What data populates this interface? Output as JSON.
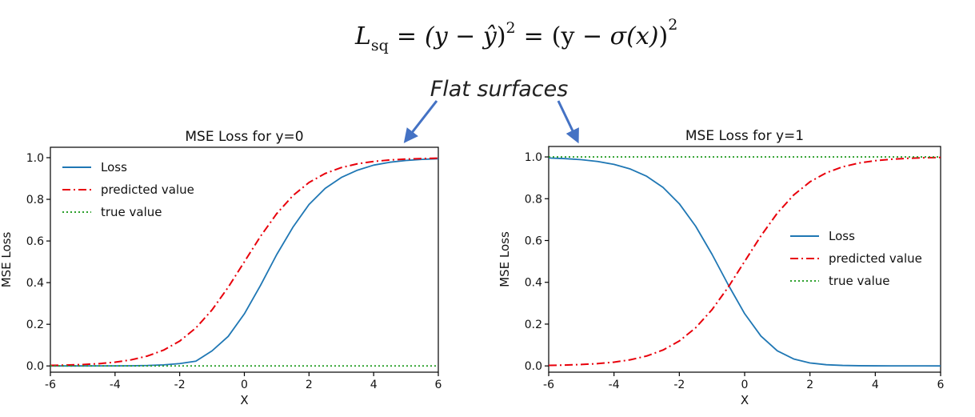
{
  "equation": {
    "lhs_base": "L",
    "lhs_sub": "sq",
    "eq1": "=",
    "mid_open": "(y − ",
    "yhat": "ŷ",
    "mid_close": ")",
    "mid_exp": "2",
    "eq2": "=",
    "rhs_open": "(",
    "rhs_y": "y",
    "rhs_minus": " − ",
    "rhs_sigma": "σ",
    "rhs_arg": "(x)",
    "rhs_close": ")",
    "rhs_exp": "2"
  },
  "annotation": {
    "text": "Flat surfaces",
    "arrow_color": "#4472C4"
  },
  "chart_data": [
    {
      "type": "line",
      "title": "MSE Loss for y=0",
      "xlabel": "X",
      "ylabel": "MSE Loss",
      "xlim": [
        -6,
        6
      ],
      "ylim": [
        -0.03,
        1.05
      ],
      "xticks": [
        -6,
        -4,
        -2,
        0,
        2,
        4,
        6
      ],
      "yticks": [
        0.0,
        0.2,
        0.4,
        0.6,
        0.8,
        1.0
      ],
      "ytick_labels": [
        "0.0",
        "0.2",
        "0.4",
        "0.6",
        "0.8",
        "1.0"
      ],
      "legend": "top-left",
      "grid": false,
      "x": [
        -6,
        -5.5,
        -5,
        -4.5,
        -4,
        -3.5,
        -3,
        -2.5,
        -2,
        -1.5,
        -1,
        -0.5,
        0,
        0.5,
        1,
        1.5,
        2,
        2.5,
        3,
        3.5,
        4,
        4.5,
        5,
        5.5,
        6
      ],
      "series": [
        {
          "name": "Loss",
          "color": "#1f77b4",
          "dash": "solid",
          "values": [
            6e-06,
            1.7e-05,
            4.5e-05,
            0.000122,
            0.000326,
            0.00085,
            0.00215,
            0.00514,
            0.01138,
            0.02288,
            0.07232,
            0.14185,
            0.25,
            0.38662,
            0.53444,
            0.66554,
            0.77526,
            0.85268,
            0.90502,
            0.94005,
            0.96421,
            0.97811,
            0.98674,
            0.99183,
            0.99504
          ]
        },
        {
          "name": "predicted value",
          "color": "#e8000b",
          "dash": "dashdot",
          "values": [
            0.00247,
            0.00407,
            0.00669,
            0.01099,
            0.01799,
            0.02931,
            0.04743,
            0.07586,
            0.1192,
            0.18243,
            0.26894,
            0.37754,
            0.5,
            0.62246,
            0.73106,
            0.81757,
            0.8808,
            0.92414,
            0.95257,
            0.97069,
            0.98201,
            0.98901,
            0.99331,
            0.99593,
            0.99753
          ]
        },
        {
          "name": "true value",
          "color": "#2ca02c",
          "dash": "dotted",
          "values": [
            0,
            0,
            0,
            0,
            0,
            0,
            0,
            0,
            0,
            0,
            0,
            0,
            0,
            0,
            0,
            0,
            0,
            0,
            0,
            0,
            0,
            0,
            0,
            0,
            0
          ]
        }
      ]
    },
    {
      "type": "line",
      "title": "MSE Loss for y=1",
      "xlabel": "X",
      "ylabel": "MSE Loss",
      "xlim": [
        -6,
        6
      ],
      "ylim": [
        -0.03,
        1.05
      ],
      "xticks": [
        -6,
        -4,
        -2,
        0,
        2,
        4,
        6
      ],
      "yticks": [
        0.0,
        0.2,
        0.4,
        0.6,
        0.8,
        1.0
      ],
      "ytick_labels": [
        "0.0",
        "0.2",
        "0.4",
        "0.6",
        "0.8",
        "1.0"
      ],
      "legend": "center-right",
      "grid": false,
      "x": [
        -6,
        -5.5,
        -5,
        -4.5,
        -4,
        -3.5,
        -3,
        -2.5,
        -2,
        -1.5,
        -1,
        -0.5,
        0,
        0.5,
        1,
        1.5,
        2,
        2.5,
        3,
        3.5,
        4,
        4.5,
        5,
        5.5,
        6
      ],
      "series": [
        {
          "name": "Loss",
          "color": "#1f77b4",
          "dash": "solid",
          "values": [
            0.99507,
            0.99188,
            0.98669,
            0.97813,
            0.96434,
            0.94224,
            0.90739,
            0.85403,
            0.77581,
            0.66842,
            0.53444,
            0.38745,
            0.25,
            0.14253,
            0.07232,
            0.03328,
            0.01421,
            0.00575,
            0.00225,
            0.00086,
            0.000324,
            0.000121,
            4.5e-05,
            1.7e-05,
            6e-06
          ]
        },
        {
          "name": "predicted value",
          "color": "#e8000b",
          "dash": "dashdot",
          "values": [
            0.00247,
            0.00407,
            0.00669,
            0.01099,
            0.01799,
            0.02931,
            0.04743,
            0.07586,
            0.1192,
            0.18243,
            0.26894,
            0.37754,
            0.5,
            0.62246,
            0.73106,
            0.81757,
            0.8808,
            0.92414,
            0.95257,
            0.97069,
            0.98201,
            0.98901,
            0.99331,
            0.99593,
            0.99753
          ]
        },
        {
          "name": "true value",
          "color": "#2ca02c",
          "dash": "dotted",
          "values": [
            1,
            1,
            1,
            1,
            1,
            1,
            1,
            1,
            1,
            1,
            1,
            1,
            1,
            1,
            1,
            1,
            1,
            1,
            1,
            1,
            1,
            1,
            1,
            1,
            1
          ]
        }
      ]
    }
  ]
}
